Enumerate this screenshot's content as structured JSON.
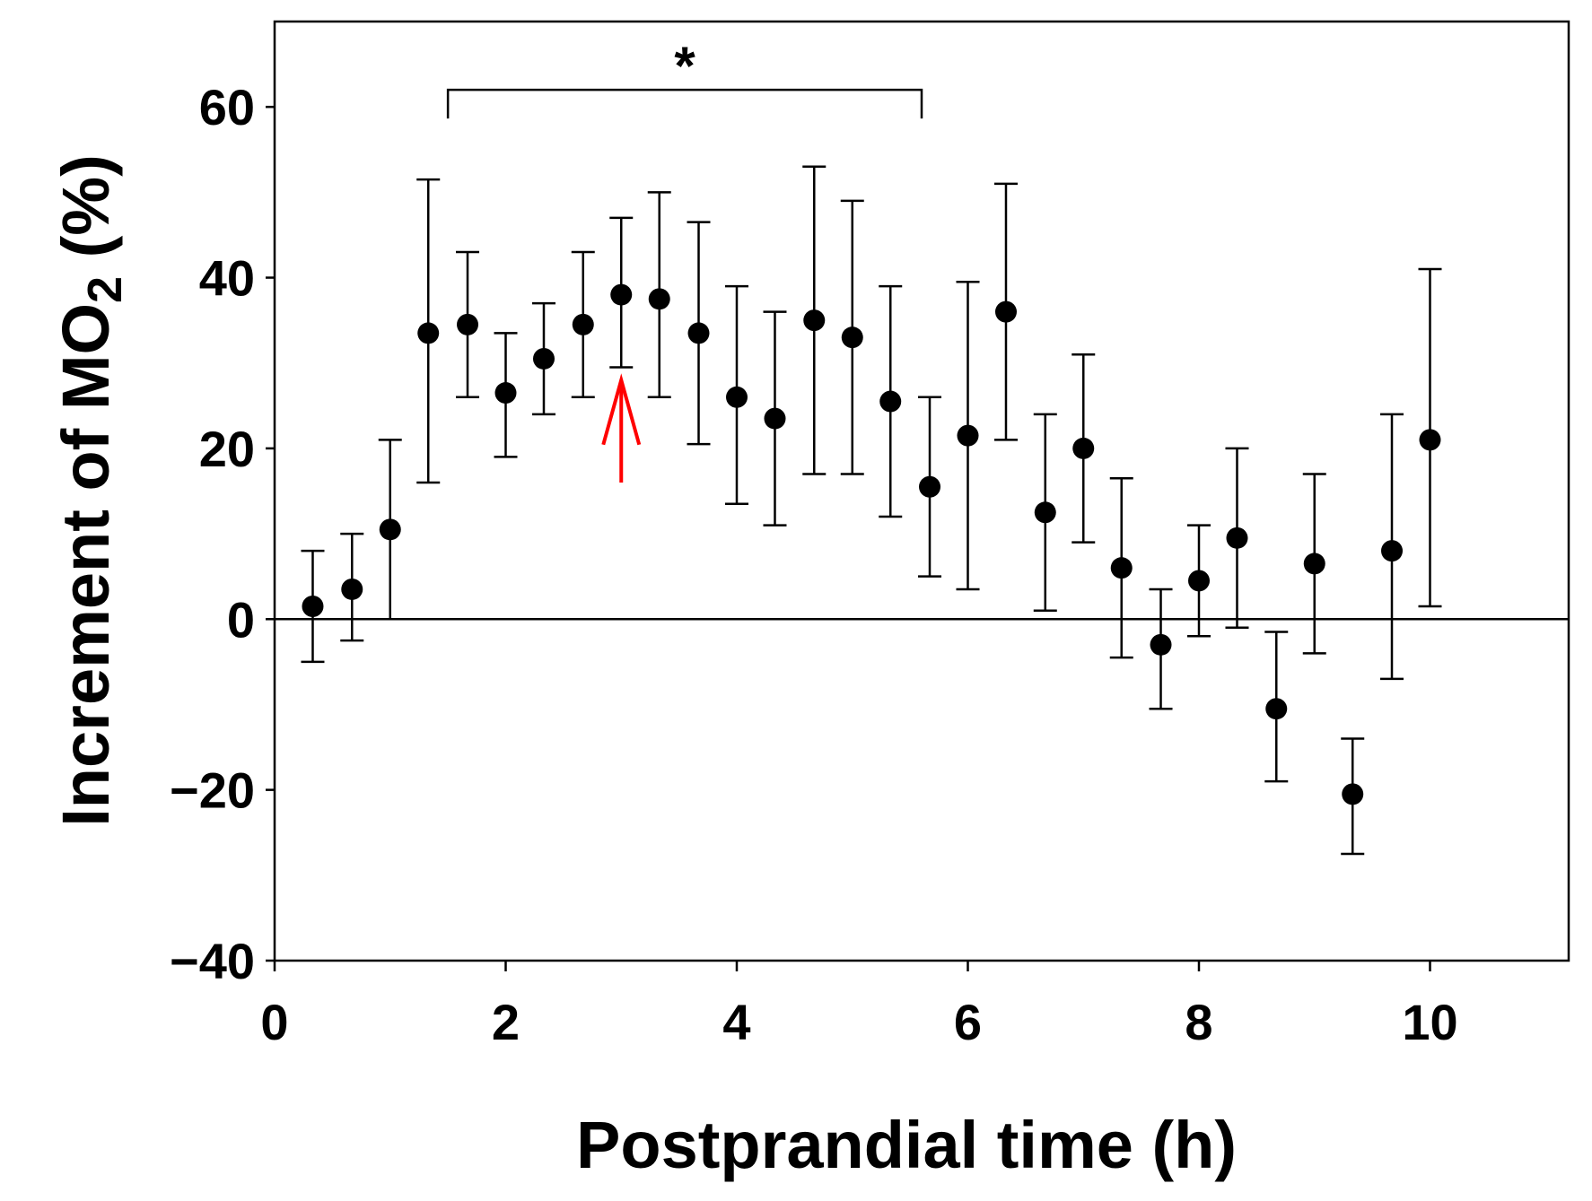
{
  "chart_data": {
    "type": "scatter",
    "title": "",
    "xlabel": "Postprandial time (h)",
    "ylabel": {
      "main": "Increment of MO",
      "sub": "2",
      "tail": " (%)"
    },
    "xlim": [
      0,
      11.2
    ],
    "ylim": [
      -40,
      70
    ],
    "xticks": [
      0,
      2,
      4,
      6,
      8,
      10
    ],
    "yticks": [
      60,
      40,
      20,
      0,
      -20,
      -40
    ],
    "ytick_labels": [
      "60",
      "40",
      "20",
      "0",
      "−20",
      "−40"
    ],
    "zero_line": true,
    "grid": false,
    "series": [
      {
        "name": "MO2 increment",
        "marker": "circle",
        "color": "#000000",
        "points": [
          {
            "x": 0.33,
            "y": 1.5,
            "lo": -5,
            "hi": 8
          },
          {
            "x": 0.67,
            "y": 3.5,
            "lo": -2.5,
            "hi": 10
          },
          {
            "x": 1.0,
            "y": 10.5,
            "lo": 0,
            "hi": 21
          },
          {
            "x": 1.33,
            "y": 33.5,
            "lo": 16,
            "hi": 51.5
          },
          {
            "x": 1.67,
            "y": 34.5,
            "lo": 26,
            "hi": 43
          },
          {
            "x": 2.0,
            "y": 26.5,
            "lo": 19,
            "hi": 33.5
          },
          {
            "x": 2.33,
            "y": 30.5,
            "lo": 24,
            "hi": 37
          },
          {
            "x": 2.67,
            "y": 34.5,
            "lo": 26,
            "hi": 43
          },
          {
            "x": 3.0,
            "y": 38,
            "lo": 29.5,
            "hi": 47
          },
          {
            "x": 3.33,
            "y": 37.5,
            "lo": 26,
            "hi": 50
          },
          {
            "x": 3.67,
            "y": 33.5,
            "lo": 20.5,
            "hi": 46.5
          },
          {
            "x": 4.0,
            "y": 26,
            "lo": 13.5,
            "hi": 39
          },
          {
            "x": 4.33,
            "y": 23.5,
            "lo": 11,
            "hi": 36
          },
          {
            "x": 4.67,
            "y": 35,
            "lo": 17,
            "hi": 53
          },
          {
            "x": 5.0,
            "y": 33,
            "lo": 17,
            "hi": 49
          },
          {
            "x": 5.33,
            "y": 25.5,
            "lo": 12,
            "hi": 39
          },
          {
            "x": 5.67,
            "y": 15.5,
            "lo": 5,
            "hi": 26
          },
          {
            "x": 6.0,
            "y": 21.5,
            "lo": 3.5,
            "hi": 39.5
          },
          {
            "x": 6.33,
            "y": 36,
            "lo": 21,
            "hi": 51
          },
          {
            "x": 6.67,
            "y": 12.5,
            "lo": 1,
            "hi": 24
          },
          {
            "x": 7.0,
            "y": 20,
            "lo": 9,
            "hi": 31
          },
          {
            "x": 7.33,
            "y": 6,
            "lo": -4.5,
            "hi": 16.5
          },
          {
            "x": 7.67,
            "y": -3,
            "lo": -10.5,
            "hi": 3.5
          },
          {
            "x": 8.0,
            "y": 4.5,
            "lo": -2,
            "hi": 11
          },
          {
            "x": 8.33,
            "y": 9.5,
            "lo": -1,
            "hi": 20
          },
          {
            "x": 8.67,
            "y": -10.5,
            "lo": -19,
            "hi": -1.5
          },
          {
            "x": 9.0,
            "y": 6.5,
            "lo": -4,
            "hi": 17
          },
          {
            "x": 9.33,
            "y": -20.5,
            "lo": -27.5,
            "hi": -14
          },
          {
            "x": 9.67,
            "y": 8,
            "lo": -7,
            "hi": 24
          },
          {
            "x": 10.0,
            "y": 21,
            "lo": 1.5,
            "hi": 41
          }
        ]
      }
    ],
    "annotations": [
      {
        "type": "significance-bracket",
        "label": "*",
        "x_start": 1.5,
        "x_end": 5.6,
        "y": 62
      },
      {
        "type": "arrow",
        "color": "#ff0000",
        "x": 3.0,
        "y_tail": 16,
        "y_head": 28
      }
    ]
  }
}
